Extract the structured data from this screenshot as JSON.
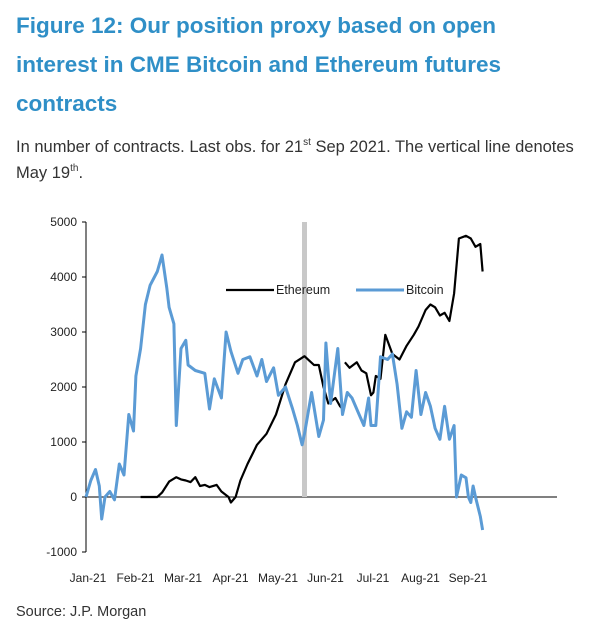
{
  "header": {
    "title": "Figure 12: Our position proxy based on open interest in CME Bitcoin and Ethereum futures contracts",
    "subtitle_a": "In number of contracts. Last obs. for 21",
    "subtitle_sup1": "st",
    "subtitle_b": " Sep 2021. The vertical line denotes May 19",
    "subtitle_sup2": "th",
    "subtitle_c": "."
  },
  "footer": {
    "source": "Source: J.P. Morgan"
  },
  "colors": {
    "ethereum": "#000000",
    "bitcoin": "#5b9bd5",
    "vline": "#c8c8c8",
    "title": "#2f8fc7"
  },
  "chart_data": {
    "type": "line",
    "title": "",
    "xlabel": "",
    "ylabel": "",
    "ylim": [
      -1000,
      5000
    ],
    "yticks": [
      -1000,
      0,
      1000,
      2000,
      3000,
      4000,
      5000
    ],
    "xlim": [
      0,
      8.35
    ],
    "xticks": [
      "Jan-21",
      "Feb-21",
      "Mar-21",
      "Apr-21",
      "May-21",
      "Jun-21",
      "Jul-21",
      "Aug-21",
      "Sep-21"
    ],
    "vline": {
      "x": 4.6,
      "label": "May 19th"
    },
    "legend": "top-center",
    "series": [
      {
        "name": "Ethereum",
        "color": "#000000",
        "points": [
          [
            1.15,
            0
          ],
          [
            1.5,
            0
          ],
          [
            1.6,
            80
          ],
          [
            1.75,
            280
          ],
          [
            1.9,
            360
          ],
          [
            2.0,
            320
          ],
          [
            2.1,
            300
          ],
          [
            2.2,
            270
          ],
          [
            2.3,
            360
          ],
          [
            2.4,
            200
          ],
          [
            2.5,
            220
          ],
          [
            2.6,
            180
          ],
          [
            2.75,
            220
          ],
          [
            2.85,
            100
          ],
          [
            3.0,
            0
          ],
          [
            3.05,
            -100
          ],
          [
            3.15,
            0
          ],
          [
            3.25,
            300
          ],
          [
            3.4,
            600
          ],
          [
            3.6,
            950
          ],
          [
            3.8,
            1150
          ],
          [
            4.0,
            1500
          ],
          [
            4.2,
            2050
          ],
          [
            4.4,
            2450
          ],
          [
            4.6,
            2560
          ],
          [
            4.65,
            2520
          ],
          [
            4.8,
            2400
          ],
          [
            4.9,
            2400
          ],
          [
            5.0,
            2000
          ],
          [
            5.1,
            1700
          ],
          [
            5.25,
            1800
          ],
          [
            5.35,
            1650
          ],
          [
            5.4,
            1600
          ]
        ]
      },
      {
        "name": "Ethereum",
        "color": "#000000",
        "points": [
          [
            5.45,
            2450
          ],
          [
            5.55,
            2350
          ],
          [
            5.7,
            2450
          ],
          [
            5.8,
            2300
          ],
          [
            5.9,
            2250
          ],
          [
            6.0,
            1850
          ],
          [
            6.05,
            1900
          ],
          [
            6.1,
            2200
          ],
          [
            6.2,
            2150
          ],
          [
            6.3,
            2950
          ],
          [
            6.45,
            2600
          ],
          [
            6.6,
            2500
          ],
          [
            6.75,
            2750
          ],
          [
            6.9,
            2950
          ],
          [
            7.0,
            3100
          ],
          [
            7.15,
            3400
          ],
          [
            7.25,
            3500
          ],
          [
            7.35,
            3450
          ],
          [
            7.45,
            3300
          ],
          [
            7.55,
            3350
          ],
          [
            7.65,
            3200
          ],
          [
            7.75,
            3700
          ],
          [
            7.85,
            4700
          ],
          [
            8.0,
            4750
          ],
          [
            8.1,
            4700
          ],
          [
            8.2,
            4550
          ],
          [
            8.3,
            4600
          ],
          [
            8.35,
            4100
          ]
        ]
      },
      {
        "name": "Bitcoin",
        "color": "#5b9bd5",
        "points": [
          [
            0.0,
            0
          ],
          [
            0.1,
            300
          ],
          [
            0.2,
            500
          ],
          [
            0.28,
            200
          ],
          [
            0.33,
            -400
          ],
          [
            0.4,
            0
          ],
          [
            0.5,
            100
          ],
          [
            0.6,
            -50
          ],
          [
            0.7,
            600
          ],
          [
            0.8,
            400
          ],
          [
            0.9,
            1500
          ],
          [
            1.0,
            1200
          ],
          [
            1.05,
            2200
          ],
          [
            1.15,
            2700
          ],
          [
            1.25,
            3500
          ],
          [
            1.35,
            3850
          ],
          [
            1.5,
            4100
          ],
          [
            1.6,
            4400
          ],
          [
            1.7,
            3800
          ],
          [
            1.75,
            3450
          ],
          [
            1.85,
            3150
          ],
          [
            1.9,
            1300
          ],
          [
            2.0,
            2700
          ],
          [
            2.1,
            2850
          ],
          [
            2.15,
            2400
          ],
          [
            2.3,
            2300
          ],
          [
            2.5,
            2250
          ],
          [
            2.6,
            1600
          ],
          [
            2.7,
            2150
          ],
          [
            2.85,
            1800
          ],
          [
            2.95,
            3000
          ],
          [
            3.05,
            2650
          ],
          [
            3.2,
            2250
          ],
          [
            3.3,
            2500
          ],
          [
            3.45,
            2550
          ],
          [
            3.6,
            2200
          ],
          [
            3.7,
            2500
          ],
          [
            3.8,
            2100
          ],
          [
            3.95,
            2350
          ],
          [
            4.05,
            1850
          ],
          [
            4.2,
            2000
          ],
          [
            4.35,
            1600
          ],
          [
            4.45,
            1300
          ],
          [
            4.55,
            950
          ],
          [
            4.6,
            1150
          ],
          [
            4.75,
            1900
          ],
          [
            4.9,
            1100
          ],
          [
            5.0,
            1400
          ],
          [
            5.05,
            2800
          ],
          [
            5.15,
            1700
          ],
          [
            5.3,
            2700
          ],
          [
            5.4,
            1500
          ],
          [
            5.5,
            1900
          ],
          [
            5.6,
            1800
          ],
          [
            5.75,
            1500
          ],
          [
            5.85,
            1300
          ],
          [
            5.95,
            1800
          ],
          [
            6.0,
            1300
          ],
          [
            6.1,
            1300
          ],
          [
            6.2,
            2550
          ],
          [
            6.35,
            2500
          ],
          [
            6.45,
            2600
          ],
          [
            6.55,
            2050
          ],
          [
            6.65,
            1250
          ],
          [
            6.75,
            1550
          ],
          [
            6.85,
            1450
          ],
          [
            6.95,
            2300
          ],
          [
            7.05,
            1500
          ],
          [
            7.15,
            1900
          ],
          [
            7.25,
            1650
          ],
          [
            7.35,
            1250
          ],
          [
            7.45,
            1050
          ],
          [
            7.55,
            1650
          ],
          [
            7.65,
            1050
          ],
          [
            7.75,
            1300
          ],
          [
            7.8,
            0
          ],
          [
            7.9,
            400
          ],
          [
            8.0,
            350
          ],
          [
            8.05,
            0
          ],
          [
            8.1,
            -100
          ],
          [
            8.15,
            200
          ],
          [
            8.2,
            0
          ],
          [
            8.3,
            -350
          ],
          [
            8.35,
            -600
          ]
        ]
      }
    ],
    "legend_entries": [
      {
        "name": "Ethereum",
        "color": "#000000"
      },
      {
        "name": "Bitcoin",
        "color": "#5b9bd5"
      }
    ]
  }
}
